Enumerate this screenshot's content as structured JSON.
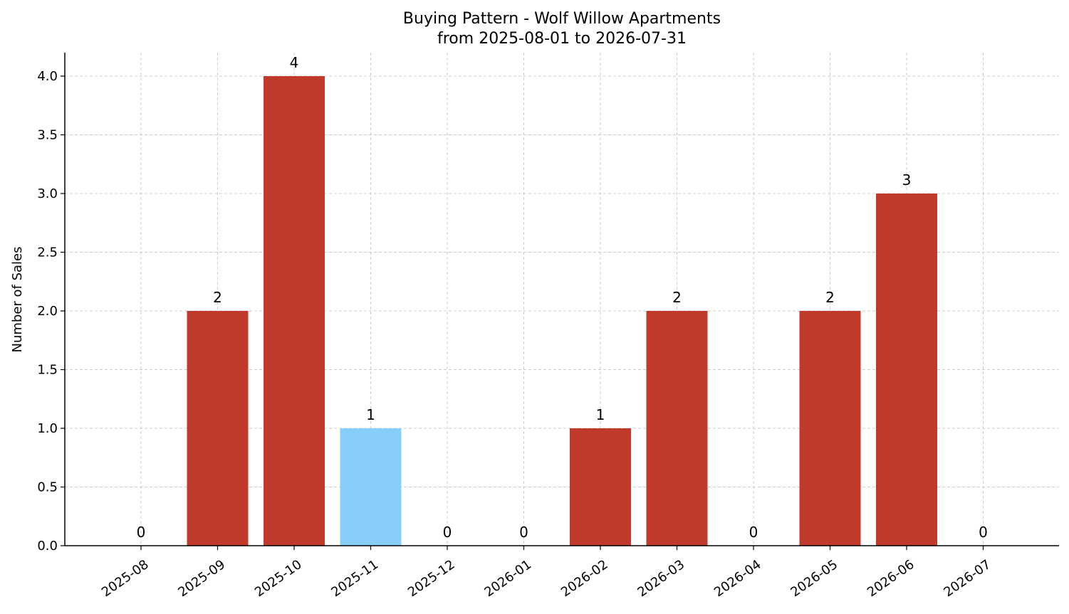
{
  "chart_data": {
    "type": "bar",
    "title": "Buying Pattern - Wolf Willow Apartments",
    "subtitle": "from 2025-08-01 to 2026-07-31",
    "xlabel": "",
    "ylabel": "Number of Sales",
    "categories": [
      "2025-08",
      "2025-09",
      "2025-10",
      "2025-11",
      "2025-12",
      "2026-01",
      "2026-02",
      "2026-03",
      "2026-04",
      "2026-05",
      "2026-06",
      "2026-07"
    ],
    "values": [
      0,
      2,
      4,
      1,
      0,
      0,
      1,
      2,
      0,
      2,
      3,
      0
    ],
    "ylim": [
      0,
      4.2
    ],
    "yticks": [
      "0.0",
      "0.5",
      "1.0",
      "1.5",
      "2.0",
      "2.5",
      "3.0",
      "3.5",
      "4.0"
    ],
    "bar_colors": [
      "#c0392b",
      "#c0392b",
      "#c0392b",
      "#87cefa",
      "#c0392b",
      "#c0392b",
      "#c0392b",
      "#c0392b",
      "#c0392b",
      "#c0392b",
      "#c0392b",
      "#c0392b"
    ],
    "grid": true,
    "legend": "none"
  }
}
